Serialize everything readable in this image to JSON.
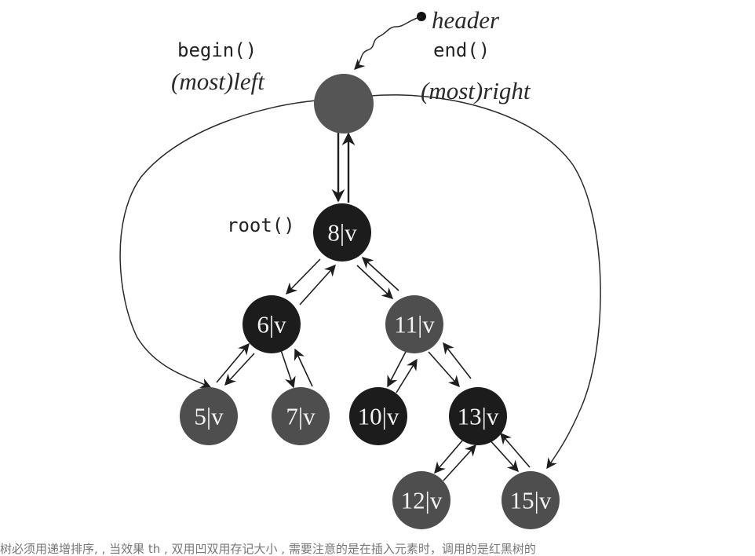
{
  "labels": {
    "header": "header",
    "begin": "begin()",
    "end": "end()",
    "most_left": "(most)left",
    "most_right": "(most)right",
    "root": "root()"
  },
  "nodes": {
    "header_node": "",
    "n8": "8|v",
    "n6": "6|v",
    "n11": "11|v",
    "n5": "5|v",
    "n7": "7|v",
    "n10": "10|v",
    "n13": "13|v",
    "n12": "12|v",
    "n15": "15|v"
  },
  "colors": {
    "header_fill": "#555555",
    "black_fill": "#1c1c1c",
    "red_fill": "#4e4e4e",
    "line": "#1e1e1e"
  },
  "caption": "树必须用递增排序, , 当效果 th , 双用凹双用存记大小 , 需要注意的是在插入元素时，调用的是红黑树的"
}
